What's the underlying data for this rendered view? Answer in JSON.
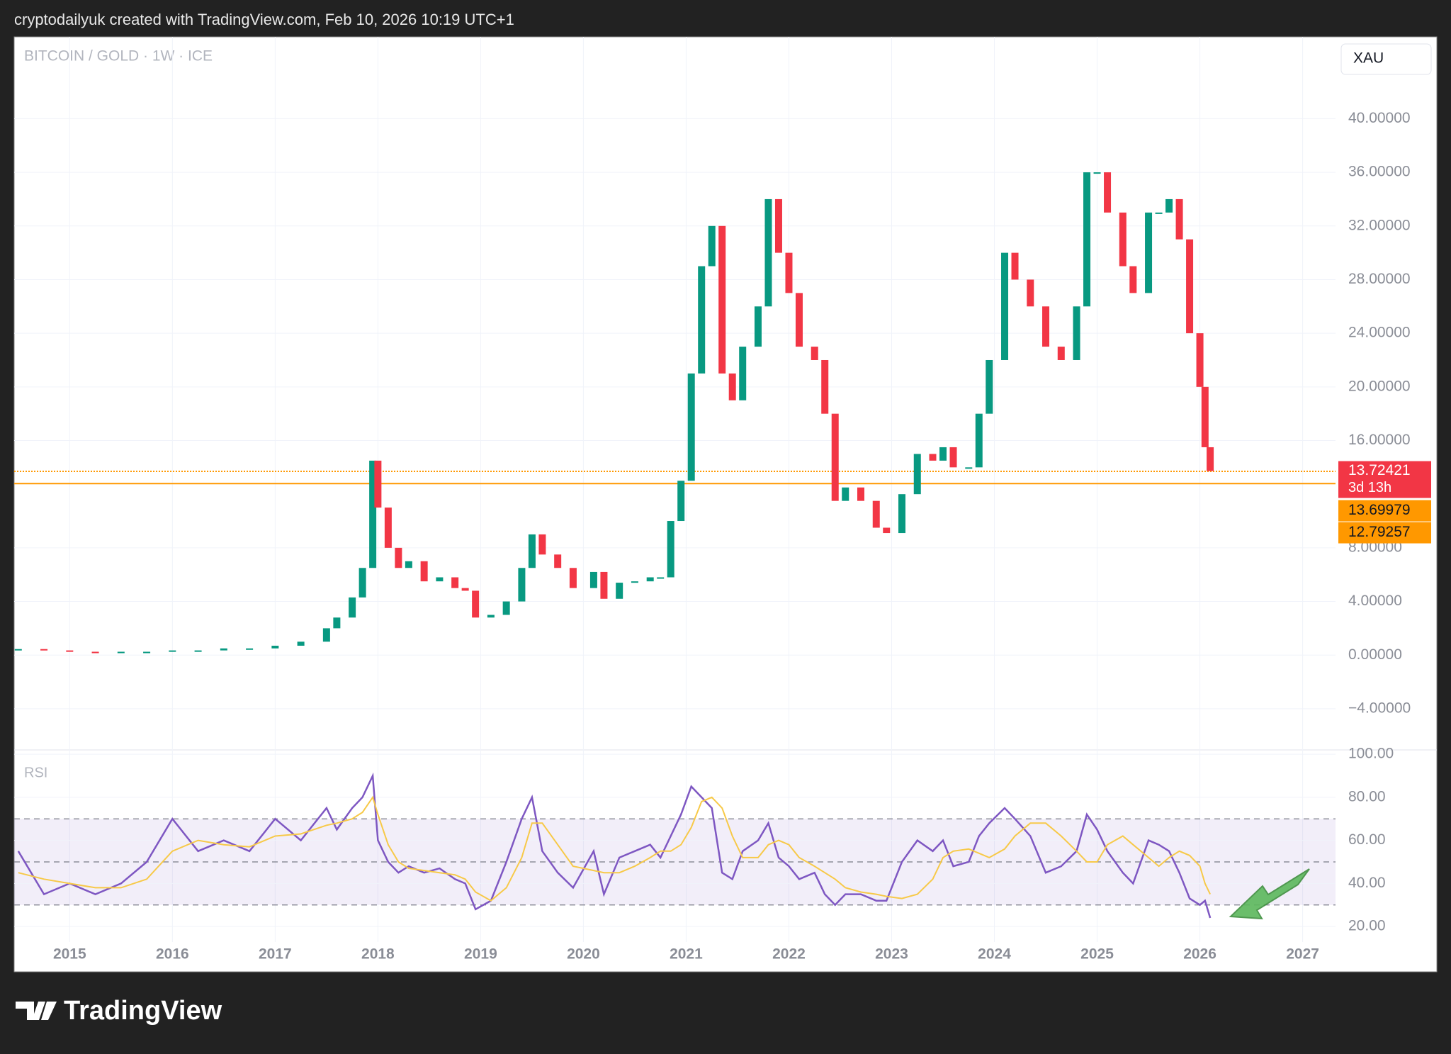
{
  "header": "cryptodailyuk created with TradingView.com, Feb 10, 2026 10:19 UTC+1",
  "footer": {
    "brand": "TradingView"
  },
  "symbol_button": "XAU",
  "chart_data": [
    {
      "type": "candlestick",
      "title": "BITCOIN / GOLD · 1W · ICE",
      "x": [
        2014.5,
        2014.75,
        2015.0,
        2015.25,
        2015.5,
        2015.75,
        2016.0,
        2016.25,
        2016.5,
        2016.75,
        2017.0,
        2017.25,
        2017.5,
        2017.6,
        2017.75,
        2017.85,
        2017.95,
        2018.0,
        2018.1,
        2018.2,
        2018.3,
        2018.45,
        2018.6,
        2018.75,
        2018.85,
        2018.95,
        2019.1,
        2019.25,
        2019.4,
        2019.5,
        2019.6,
        2019.75,
        2019.9,
        2020.1,
        2020.2,
        2020.35,
        2020.5,
        2020.65,
        2020.75,
        2020.85,
        2020.95,
        2021.05,
        2021.15,
        2021.25,
        2021.35,
        2021.45,
        2021.55,
        2021.7,
        2021.8,
        2021.9,
        2022.0,
        2022.1,
        2022.25,
        2022.35,
        2022.45,
        2022.55,
        2022.7,
        2022.85,
        2022.95,
        2023.1,
        2023.25,
        2023.4,
        2023.5,
        2023.6,
        2023.75,
        2023.85,
        2023.95,
        2024.1,
        2024.2,
        2024.35,
        2024.5,
        2024.65,
        2024.8,
        2024.9,
        2025.0,
        2025.1,
        2025.25,
        2025.35,
        2025.5,
        2025.6,
        2025.7,
        2025.8,
        2025.9,
        2026.0,
        2026.05,
        2026.1
      ],
      "values": [
        0.45,
        0.35,
        0.25,
        0.2,
        0.25,
        0.25,
        0.35,
        0.35,
        0.5,
        0.5,
        0.7,
        1.0,
        2.0,
        2.8,
        4.3,
        6.5,
        14.5,
        11,
        8,
        6.5,
        7,
        5.5,
        5.8,
        5,
        4.8,
        2.8,
        3.0,
        4.0,
        6.5,
        9,
        7.5,
        6.5,
        5,
        6.2,
        4.2,
        5.4,
        5.5,
        5.8,
        5.8,
        10,
        13,
        21,
        29,
        32,
        21,
        19,
        23,
        26,
        34,
        30,
        27,
        23,
        22,
        18,
        11.5,
        12.5,
        11.5,
        9.5,
        9.1,
        12,
        15,
        14.5,
        15.5,
        14,
        14,
        18,
        22,
        30,
        28,
        26,
        23,
        22,
        26,
        36,
        36,
        33,
        29,
        27,
        33,
        33,
        34,
        31,
        24,
        20,
        15.5,
        13.72421
      ],
      "up_color": "#089981",
      "down_color": "#f23645",
      "countdown": "3d 13h",
      "levels": [
        {
          "value": 13.69979,
          "color": "#ff9800",
          "style": "dotted"
        },
        {
          "value": 12.79257,
          "color": "#ff9800",
          "style": "solid"
        }
      ],
      "xlim": [
        2014.46,
        2027.32
      ],
      "xticks": [
        2015,
        2016,
        2017,
        2018,
        2019,
        2020,
        2021,
        2022,
        2023,
        2024,
        2025,
        2026,
        2027
      ],
      "ylim": [
        -6.7,
        46.1
      ],
      "yticks": [
        {
          "value": -4,
          "label": "−4.00000"
        },
        {
          "value": 0,
          "label": "0.00000"
        },
        {
          "value": 4,
          "label": "4.00000"
        },
        {
          "value": 8,
          "label": "8.00000"
        },
        {
          "value": 16,
          "label": "16.00000"
        },
        {
          "value": 20,
          "label": "20.00000"
        },
        {
          "value": 24,
          "label": "24.00000"
        },
        {
          "value": 28,
          "label": "28.00000"
        },
        {
          "value": 32,
          "label": "32.00000"
        },
        {
          "value": 36,
          "label": "36.00000"
        },
        {
          "value": 40,
          "label": "40.00000"
        }
      ],
      "grid": true
    },
    {
      "type": "line",
      "title": "RSI",
      "series": [
        {
          "color": "#7e57c2",
          "values": [
            55,
            35,
            40,
            35,
            40,
            50,
            70,
            55,
            60,
            55,
            70,
            60,
            75,
            65,
            75,
            80,
            90,
            60,
            50,
            45,
            48,
            45,
            47,
            42,
            40,
            28,
            32,
            50,
            70,
            80,
            55,
            45,
            38,
            55,
            35,
            52,
            55,
            58,
            52,
            62,
            72,
            85,
            80,
            75,
            45,
            42,
            55,
            60,
            68,
            52,
            48,
            42,
            45,
            35,
            30,
            35,
            35,
            32,
            32,
            50,
            60,
            55,
            60,
            48,
            50,
            62,
            68,
            75,
            70,
            62,
            45,
            48,
            55,
            72,
            65,
            55,
            45,
            40,
            60,
            58,
            55,
            45,
            33,
            30,
            32,
            24
          ]
        },
        {
          "color": "#f7c948",
          "values": [
            45,
            42,
            40,
            38,
            38,
            42,
            55,
            60,
            58,
            57,
            62,
            63,
            67,
            68,
            70,
            73,
            80,
            72,
            58,
            50,
            47,
            46,
            45,
            44,
            42,
            36,
            32,
            38,
            52,
            68,
            68,
            58,
            48,
            46,
            45,
            45,
            48,
            52,
            55,
            55,
            58,
            66,
            78,
            80,
            75,
            62,
            52,
            52,
            58,
            60,
            58,
            52,
            48,
            45,
            42,
            38,
            36,
            35,
            34,
            33,
            35,
            42,
            52,
            55,
            56,
            54,
            52,
            56,
            62,
            68,
            68,
            62,
            55,
            50,
            50,
            58,
            62,
            58,
            52,
            48,
            52,
            55,
            53,
            48,
            40,
            35
          ]
        }
      ],
      "bands": [
        30,
        50,
        70
      ],
      "ylim": [
        12.8,
        102
      ],
      "yticks": [
        {
          "value": 20,
          "label": "20.00"
        },
        {
          "value": 40,
          "label": "40.00"
        },
        {
          "value": 60,
          "label": "60.00"
        },
        {
          "value": 80,
          "label": "80.00"
        },
        {
          "value": 100,
          "label": "100.00"
        }
      ]
    }
  ]
}
